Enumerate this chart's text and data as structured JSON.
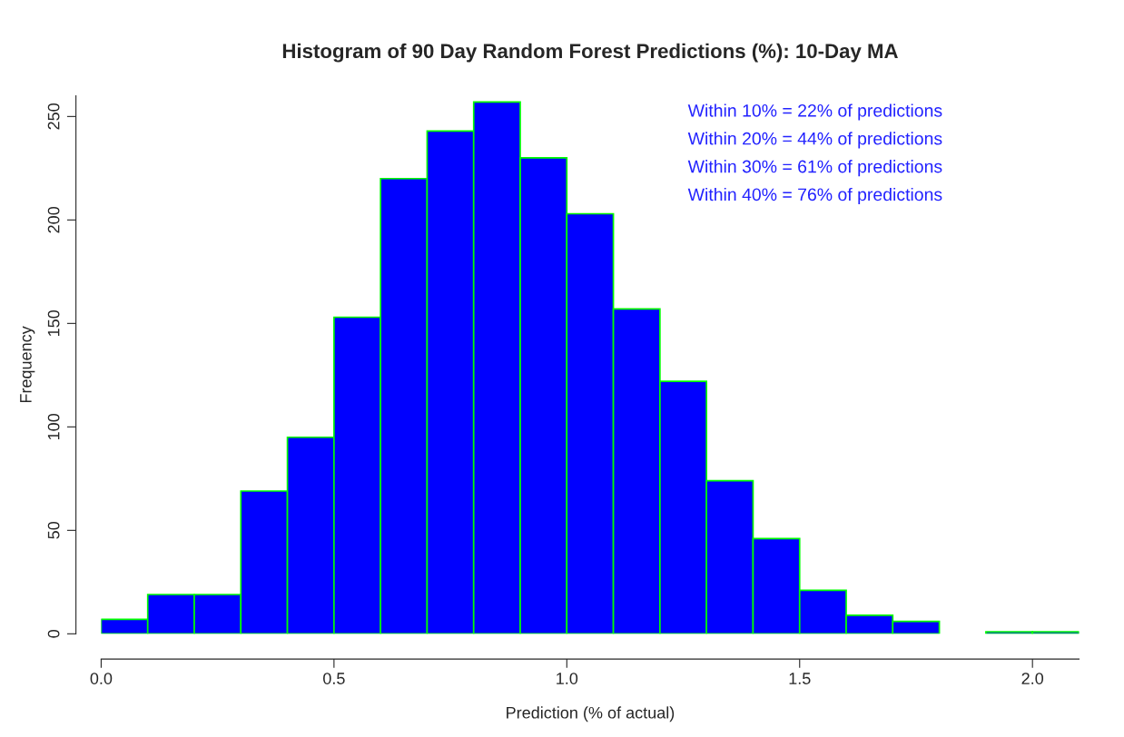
{
  "chart_data": {
    "type": "histogram",
    "title": "Histogram of 90 Day Random Forest Predictions (%): 10-Day MA",
    "xlabel": "Prediction (% of actual)",
    "ylabel": "Frequency",
    "bins": [
      0.0,
      0.1,
      0.2,
      0.3,
      0.4,
      0.5,
      0.6,
      0.7,
      0.8,
      0.9,
      1.0,
      1.1,
      1.2,
      1.3,
      1.4,
      1.5,
      1.6,
      1.7,
      1.8,
      1.9,
      2.0,
      2.1
    ],
    "values": [
      7,
      19,
      19,
      69,
      95,
      153,
      220,
      243,
      257,
      230,
      203,
      157,
      122,
      74,
      46,
      21,
      9,
      6,
      0,
      1,
      1
    ],
    "color": "#0000ff",
    "xlim": [
      0.0,
      2.1
    ],
    "ylim": [
      0,
      260
    ],
    "xticks": [
      {
        "value": 0.0,
        "label": "0.0"
      },
      0.5,
      {
        "value": 1.0,
        "label": "1.0"
      },
      1.5,
      {
        "value": 2.0,
        "label": "2.0"
      }
    ],
    "yticks": [
      0,
      50,
      100,
      150,
      200,
      250
    ],
    "annotations": [
      "Within 10% = 22% of predictions",
      "Within 20% = 44% of predictions",
      "Within 30% = 61% of predictions",
      "Within 40% = 76% of predictions"
    ]
  }
}
